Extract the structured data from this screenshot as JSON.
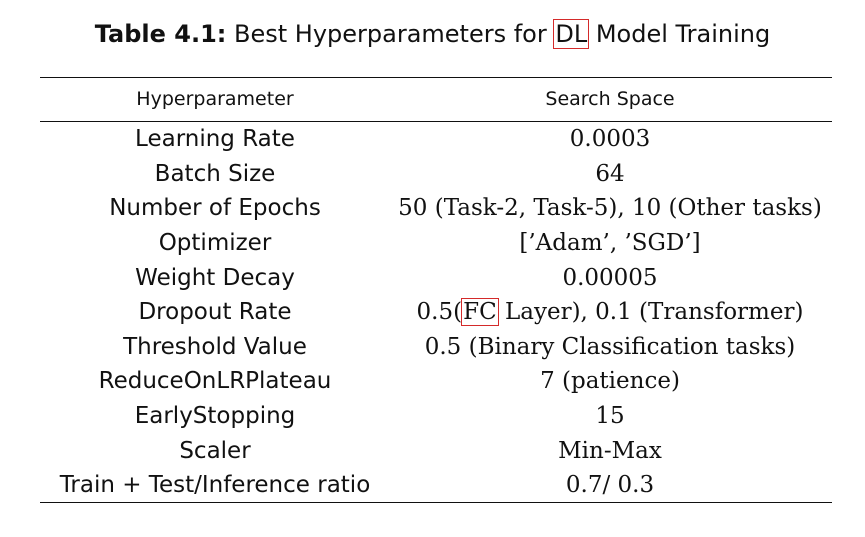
{
  "caption": {
    "label": "Table 4.1:",
    "text_before": " Best Hyperparameters for ",
    "abbr": "DL",
    "text_after": " Model Training"
  },
  "table": {
    "headers": [
      "Hyperparameter",
      "Search Space"
    ],
    "rows": [
      {
        "name": "Learning Rate",
        "value": "0.0003"
      },
      {
        "name": "Batch Size",
        "value": "64"
      },
      {
        "name": "Number of Epochs",
        "value": "50 (Task-2, Task-5), 10 (Other tasks)"
      },
      {
        "name": "Optimizer",
        "value": "[’Adam’, ’SGD’]"
      },
      {
        "name": "Weight Decay",
        "value": "0.00005"
      },
      {
        "name": "Dropout Rate",
        "value_before": "0.5(",
        "value_abbr": "FC",
        "value_after": " Layer), 0.1 (Transformer)"
      },
      {
        "name": "Threshold Value",
        "value": "0.5 (Binary Classification tasks)"
      },
      {
        "name": "ReduceOnLRPlateau",
        "value": "7 (patience)"
      },
      {
        "name": "EarlyStopping",
        "value": "15"
      },
      {
        "name": "Scaler",
        "value": "Min-Max"
      },
      {
        "name": "Train + Test/Inference ratio",
        "value": "0.7/ 0.3"
      }
    ]
  },
  "colors": {
    "link_box": "#d42a2a",
    "text": "#111111"
  }
}
